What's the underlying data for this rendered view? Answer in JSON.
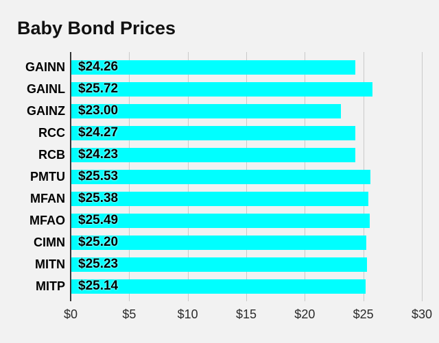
{
  "title": "Baby Bond Prices",
  "chart_data": {
    "type": "bar",
    "orientation": "horizontal",
    "title": "Baby Bond Prices",
    "categories": [
      "GAINN",
      "GAINL",
      "GAINZ",
      "RCC",
      "RCB",
      "PMTU",
      "MFAN",
      "MFAO",
      "CIMN",
      "MITN",
      "MITP"
    ],
    "values": [
      24.26,
      25.72,
      23.0,
      24.27,
      24.23,
      25.53,
      25.38,
      25.49,
      25.2,
      25.23,
      25.14
    ],
    "value_labels": [
      "$24.26",
      "$25.72",
      "$23.00",
      "$24.27",
      "$24.23",
      "$25.53",
      "$25.38",
      "$25.49",
      "$25.20",
      "$25.23",
      "$25.14"
    ],
    "xlabel": "",
    "ylabel": "",
    "xlim": [
      0,
      30
    ],
    "x_tick_values": [
      0,
      5,
      10,
      15,
      20,
      25,
      30
    ],
    "x_tick_labels": [
      "$0",
      "$5",
      "$10",
      "$15",
      "$20",
      "$25",
      "$30"
    ],
    "grid": true,
    "legend": false,
    "colors": {
      "bar": "#00ffff",
      "background": "#f2f2f2",
      "gridline": "#c9c9c9",
      "axis": "#333333",
      "text": "#000000"
    }
  }
}
